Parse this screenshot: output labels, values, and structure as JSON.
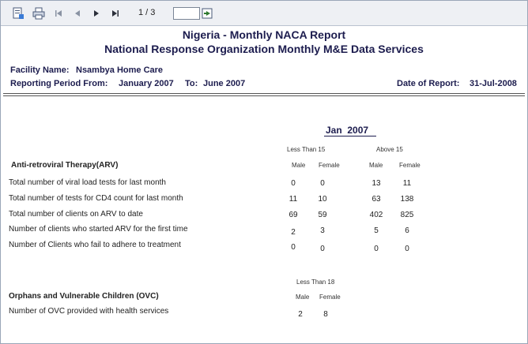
{
  "toolbar": {
    "page_info": "1 / 3"
  },
  "report": {
    "title": "Nigeria - Monthly NACA Report",
    "subtitle": "National Response Organization Monthly M&E Data Services"
  },
  "facility": {
    "label": "Facility Name:",
    "value": "Nsambya Home Care"
  },
  "period": {
    "from_label": "Reporting Period From:",
    "from_value": "January 2007",
    "to_label": "To:",
    "to_value": "June 2007"
  },
  "date_of_report": {
    "label": "Date of Report:",
    "value": "31-Jul-2008"
  },
  "month_header": {
    "month": "Jan",
    "year": "2007"
  },
  "arv": {
    "section_title": "Anti-retroviral Therapy(ARV)",
    "group1": "Less Than 15",
    "group2": "Above 15",
    "male": "Male",
    "female": "Female",
    "rows": [
      {
        "label": "Total number of viral load tests for last month",
        "values": [
          "0",
          "0",
          "13",
          "11"
        ]
      },
      {
        "label": "Total number of tests for CD4 count for last month",
        "values": [
          "11",
          "10",
          "63",
          "138"
        ]
      },
      {
        "label": "Total number of clients on ARV to date",
        "values": [
          "69",
          "59",
          "402",
          "825"
        ]
      },
      {
        "label": "Number of clients who started ARV for the first time",
        "values": [
          "2",
          "3",
          "5",
          "6"
        ]
      },
      {
        "label": "Number of Clients who fail to adhere to treatment",
        "values": [
          "0",
          "0",
          "0",
          "0"
        ]
      }
    ]
  },
  "ovc": {
    "section_title": "Orphans and Vulnerable Children (OVC)",
    "group1": "Less Than 18",
    "male": "Male",
    "female": "Female",
    "rows": [
      {
        "label": "Number of OVC provided with health services",
        "values": [
          "2",
          "8"
        ]
      }
    ]
  }
}
